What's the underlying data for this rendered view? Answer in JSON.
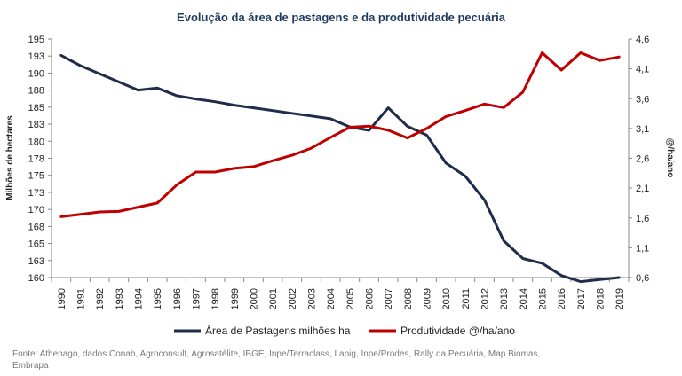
{
  "chart_data": {
    "type": "line",
    "title": "Evolução da área de pastagens e da produtividade pecuária",
    "ylabel_left": "Milhões de hectares",
    "ylabel_right": "@/ha/ano",
    "x": [
      "1990",
      "1991",
      "1992",
      "1993",
      "1994",
      "1995",
      "1996",
      "1997",
      "1998",
      "1999",
      "2000",
      "2001",
      "2002",
      "2003",
      "2004",
      "2005",
      "2006",
      "2007",
      "2008",
      "2009",
      "2010",
      "2011",
      "2012",
      "2013",
      "2014",
      "2015",
      "2016",
      "2017",
      "2018",
      "2019"
    ],
    "ylim_left": [
      160,
      195
    ],
    "ylim_right": [
      0.6,
      4.6
    ],
    "yticks_left": [
      "195",
      "193",
      "190",
      "188",
      "185",
      "183",
      "180",
      "178",
      "175",
      "173",
      "170",
      "168",
      "165",
      "163",
      "160"
    ],
    "yticks_right": [
      "4,6",
      "4,1",
      "3,6",
      "3,1",
      "2,6",
      "2,1",
      "1,6",
      "1,1",
      "0,6"
    ],
    "grid": false,
    "legend_position": "bottom",
    "series": [
      {
        "name": "Área de Pastagens milhões ha",
        "axis": "left",
        "color": "#1f2d4a",
        "values": [
          192.6,
          191.1,
          189.9,
          188.7,
          187.5,
          187.8,
          186.7,
          186.2,
          185.8,
          185.3,
          184.9,
          184.5,
          184.1,
          183.7,
          183.3,
          182.1,
          181.6,
          184.9,
          182.2,
          180.9,
          176.8,
          174.9,
          171.4,
          165.4,
          162.8,
          162.1,
          160.3,
          159.4,
          159.7,
          160.0
        ]
      },
      {
        "name": "Produtividade  @/ha/ano",
        "axis": "right",
        "color": "#c00000",
        "values": [
          1.62,
          1.66,
          1.7,
          1.71,
          1.78,
          1.85,
          2.15,
          2.37,
          2.37,
          2.43,
          2.46,
          2.56,
          2.65,
          2.77,
          2.95,
          3.12,
          3.14,
          3.07,
          2.94,
          3.1,
          3.3,
          3.4,
          3.51,
          3.45,
          3.71,
          4.37,
          4.08,
          4.37,
          4.24,
          4.3
        ]
      }
    ]
  },
  "source_note": "Fonte: Athenago, dados Conab, Agroconsult, Agrosatélite, IBGE, Inpe/Terraclass,  Lapig, Inpe/Prodes, Rally da Pecuária, Map Biomas, Embrapa"
}
